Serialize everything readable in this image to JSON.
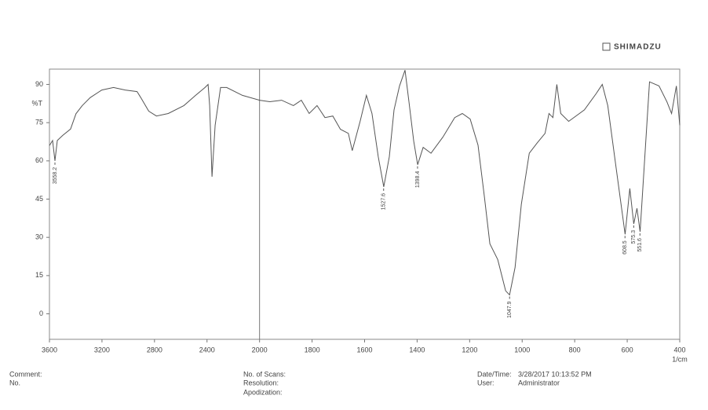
{
  "brand": "SHIMADZU",
  "footer": {
    "comment": "Comment:",
    "no": "No.",
    "scans": "No. of Scans:",
    "resolution": "Resolution:",
    "apodization": "Apodization:",
    "datetime_label": "Date/Time:",
    "datetime": "3/28/2017 10:13:52 PM",
    "user_label": "User:",
    "user": "Administrator"
  },
  "chart_data": {
    "type": "line",
    "ylabel": "%T",
    "xlabel": "1/cm",
    "xlim": [
      3600,
      400
    ],
    "xbreak": 2000,
    "ylim": [
      -10,
      96
    ],
    "xticks": [
      3600,
      3200,
      2800,
      2400,
      2000,
      1800,
      1600,
      1400,
      1200,
      1000,
      800,
      600,
      400
    ],
    "yticks": [
      90,
      75,
      60,
      45,
      30,
      15,
      0
    ],
    "series": [
      {
        "color": "#555555",
        "x": [
          3600,
          3576,
          3558,
          3540,
          3499,
          3439,
          3398,
          3350,
          3290,
          3201,
          3112,
          3023,
          2933,
          2904,
          2844,
          2785,
          2695,
          2576,
          2487,
          2415,
          2392,
          2380,
          2362,
          2338,
          2297,
          2250,
          2131,
          2000,
          1961,
          1916,
          1871,
          1841,
          1811,
          1781,
          1751,
          1721,
          1692,
          1662,
          1647,
          1617,
          1593,
          1572,
          1548,
          1527,
          1506,
          1488,
          1467,
          1446,
          1431,
          1413,
          1398,
          1377,
          1347,
          1302,
          1257,
          1228,
          1198,
          1168,
          1144,
          1123,
          1093,
          1063,
          1048,
          1027,
          1003,
          973,
          943,
          913,
          898,
          883,
          868,
          853,
          823,
          763,
          719,
          695,
          674,
          644,
          608,
          590,
          575,
          563,
          551,
          533,
          515,
          479,
          449,
          431,
          413,
          400
        ],
        "values": [
          66,
          68,
          60,
          68,
          70,
          72.5,
          78.5,
          81.7,
          84.8,
          87.8,
          88.8,
          87.8,
          87.2,
          84.8,
          79.5,
          77.6,
          78.6,
          81.7,
          85.7,
          88.8,
          90,
          81.7,
          53.8,
          74,
          88.8,
          88.8,
          85.7,
          83.8,
          83.2,
          83.8,
          81.7,
          83.8,
          78.6,
          81.7,
          77,
          77.6,
          72.4,
          70.8,
          64,
          75.5,
          85.7,
          78.6,
          61.6,
          49.8,
          61.6,
          80,
          89.4,
          95.6,
          83.2,
          67.7,
          58.5,
          65.3,
          63,
          69.3,
          77,
          78.6,
          76.4,
          66.2,
          46,
          27.5,
          21.3,
          9,
          7.4,
          18.2,
          43,
          63,
          67,
          70.8,
          78.6,
          77,
          90,
          78.6,
          75.5,
          80,
          86.3,
          90,
          81.7,
          58.5,
          31.2,
          49.2,
          35.3,
          41.4,
          32.2,
          61.6,
          91,
          89.4,
          83.2,
          78.6,
          89.4,
          74
        ]
      }
    ],
    "peaks": [
      {
        "x": 3558.2,
        "y": 60
      },
      {
        "x": 1527.6,
        "y": 49.8
      },
      {
        "x": 1398.4,
        "y": 58.5
      },
      {
        "x": 1047.9,
        "y": 7.4
      },
      {
        "x": 608.5,
        "y": 31.2
      },
      {
        "x": 575.3,
        "y": 35.3
      },
      {
        "x": 551.6,
        "y": 32.2
      }
    ]
  }
}
